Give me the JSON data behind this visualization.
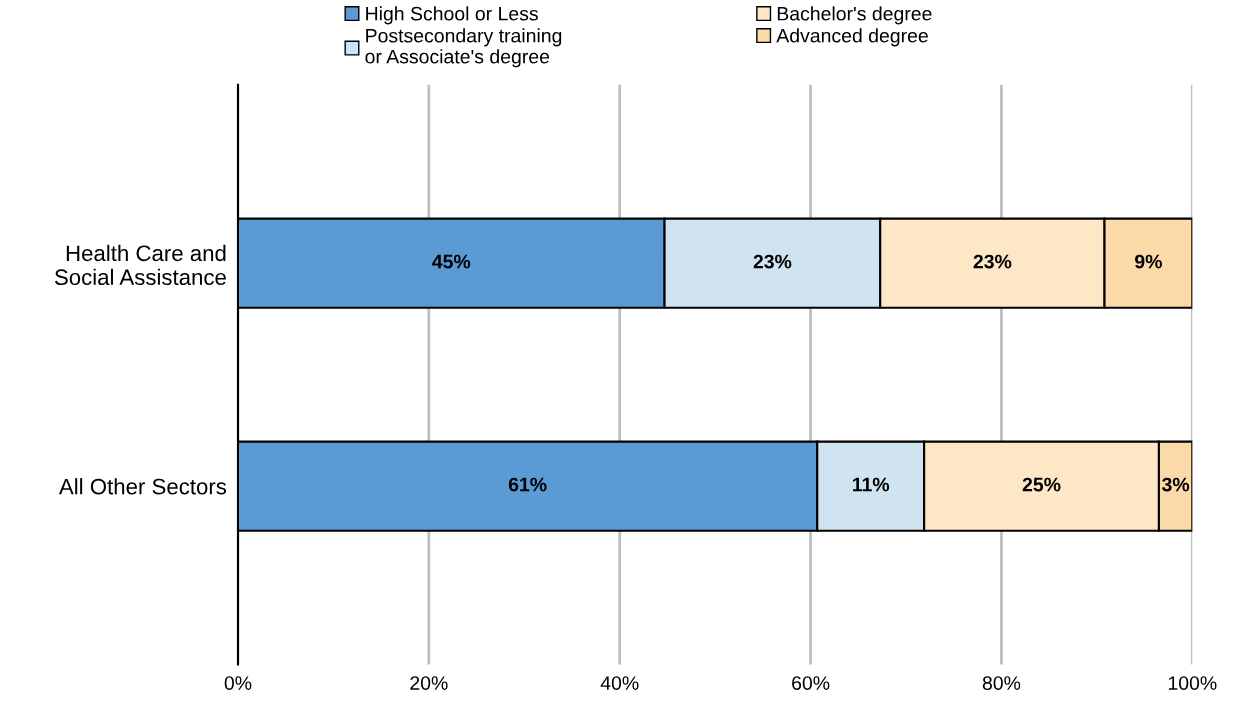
{
  "chart_data": {
    "type": "bar",
    "orientation": "horizontal",
    "stacked": true,
    "categories": [
      "Health Care and\nSocial Assistance",
      "All Other Sectors"
    ],
    "series": [
      {
        "name": "High School or Less",
        "color": "#5b9bd5",
        "values": [
          44.7,
          60.7
        ],
        "value_labels": [
          "45%",
          "61%"
        ]
      },
      {
        "name": "Postsecondary training\nor Associate's degree",
        "color": "#d0e3f0",
        "values": [
          22.6,
          11.2
        ],
        "value_labels": [
          "23%",
          "11%"
        ]
      },
      {
        "name": "Bachelor's degree",
        "color": "#fde7c6",
        "values": [
          23.5,
          24.6
        ],
        "value_labels": [
          "23%",
          "25%"
        ]
      },
      {
        "name": "Advanced degree",
        "color": "#fbd9a8",
        "values": [
          9.2,
          3.5
        ],
        "value_labels": [
          "9%",
          "3%"
        ]
      }
    ],
    "xlim": [
      0,
      100
    ],
    "xticks": [
      {
        "value": 0,
        "label": "0%"
      },
      {
        "value": 20,
        "label": "20%"
      },
      {
        "value": 40,
        "label": "40%"
      },
      {
        "value": 60,
        "label": "60%"
      },
      {
        "value": 80,
        "label": "80%"
      },
      {
        "value": 100,
        "label": "100%"
      }
    ],
    "grid": "x",
    "legend": "top"
  }
}
